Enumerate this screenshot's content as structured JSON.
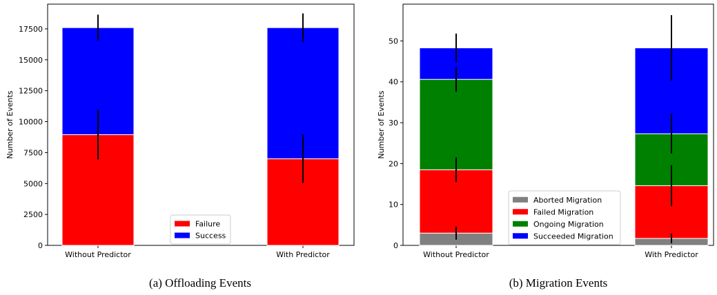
{
  "chart_data": [
    {
      "type": "bar",
      "stacked": true,
      "caption": "(a) Offloading Events",
      "title": "",
      "xlabel": "",
      "ylabel": "Number of Events",
      "ylim": [
        0,
        19500
      ],
      "yticks": [
        0,
        2500,
        5000,
        7500,
        10000,
        12500,
        15000,
        17500
      ],
      "categories": [
        "Without Predictor",
        "With Predictor"
      ],
      "series": [
        {
          "name": "Failure",
          "color": "#ff0000",
          "values": [
            8950,
            7000
          ],
          "error": [
            2000,
            1950
          ]
        },
        {
          "name": "Success",
          "color": "#0000ff",
          "values": [
            8650,
            10600
          ],
          "error": [
            1050,
            1150
          ]
        }
      ],
      "legend": "lower center",
      "grid": false
    },
    {
      "type": "bar",
      "stacked": true,
      "caption": "(b) Migration Events",
      "title": "",
      "xlabel": "",
      "ylabel": "Number of Events",
      "ylim": [
        0,
        59
      ],
      "yticks": [
        0,
        10,
        20,
        30,
        40,
        50
      ],
      "categories": [
        "Without Predictor",
        "With Predictor"
      ],
      "series": [
        {
          "name": "Aborted Migration",
          "color": "#808080",
          "values": [
            3.0,
            1.7
          ],
          "error": [
            1.6,
            1.2
          ]
        },
        {
          "name": "Failed Migration",
          "color": "#ff0000",
          "values": [
            15.5,
            12.9
          ],
          "error": [
            3.0,
            5.0
          ]
        },
        {
          "name": "Ongoing Migration",
          "color": "#008000",
          "values": [
            22.1,
            12.7
          ],
          "error": [
            3.0,
            4.8
          ]
        },
        {
          "name": "Succeeded Migration",
          "color": "#0000ff",
          "values": [
            7.7,
            21.0
          ],
          "error": [
            3.5,
            8.0
          ]
        }
      ],
      "legend": "lower center",
      "grid": false
    }
  ]
}
